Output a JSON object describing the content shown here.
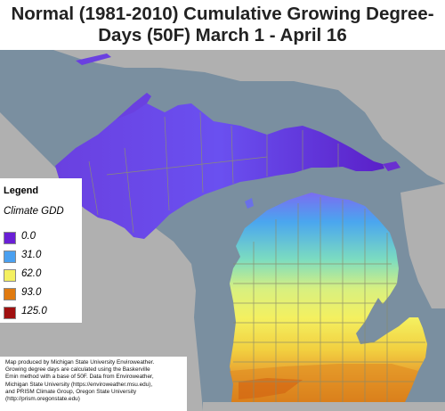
{
  "title": {
    "line1": "Normal (1981-2010) Cumulative Growing Degree-",
    "line2": "Days (50F) March 1 - April 16"
  },
  "legend": {
    "heading": "Legend",
    "subheading": "Climate GDD",
    "items": [
      {
        "label": "0.0",
        "color": "#6a1fd6"
      },
      {
        "label": "31.0",
        "color": "#4aa0f0"
      },
      {
        "label": "62.0",
        "color": "#f4f060"
      },
      {
        "label": "93.0",
        "color": "#e07a10"
      },
      {
        "label": "125.0",
        "color": "#a01010"
      }
    ]
  },
  "credit": {
    "lines": [
      "Map produced by Michigan State University Enviroweather.",
      "Growing degree days are calculated using the Baskerville",
      "Emin method with a base of 50F.  Data from Enviroweather,",
      "Michigan State University (https://enviroweather.msu.edu),",
      "and PRISM Climate Group, Oregon State University",
      "(http://prism.oregonstate.edu)"
    ]
  },
  "colors": {
    "water": "#7a8fa0",
    "land": "#b0b0b0",
    "county_lines": "#8a8a6a"
  }
}
